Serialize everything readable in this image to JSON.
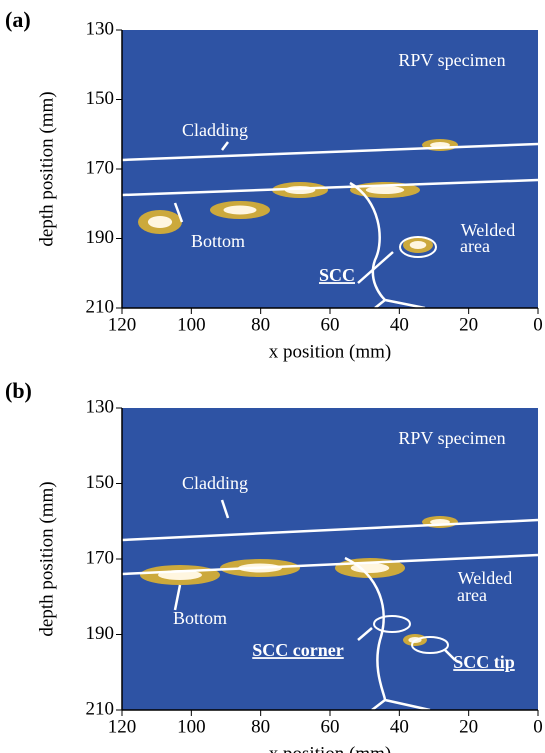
{
  "chart_data": [
    {
      "type": "image",
      "panel_label": "(a)",
      "xlabel": "x position (mm)",
      "ylabel": "depth position (mm)",
      "xlim": [
        120,
        0
      ],
      "xticks": [
        120,
        100,
        80,
        60,
        40,
        20,
        0
      ],
      "ylim": [
        210,
        130
      ],
      "yticks": [
        130,
        150,
        170,
        190,
        210
      ],
      "annotations": [
        "RPV specimen",
        "Cladding",
        "Welded",
        "area",
        "Bottom",
        "SCC"
      ]
    },
    {
      "type": "image",
      "panel_label": "(b)",
      "xlabel": "x position (mm)",
      "ylabel": "depth position (mm)",
      "xlim": [
        120,
        0
      ],
      "xticks": [
        120,
        100,
        80,
        60,
        40,
        20,
        0
      ],
      "ylim": [
        210,
        130
      ],
      "yticks": [
        130,
        150,
        170,
        190,
        210
      ],
      "annotations": [
        "RPV specimen",
        "Cladding",
        "Welded",
        "area",
        "Bottom",
        "SCC corner",
        "SCC tip"
      ]
    }
  ]
}
